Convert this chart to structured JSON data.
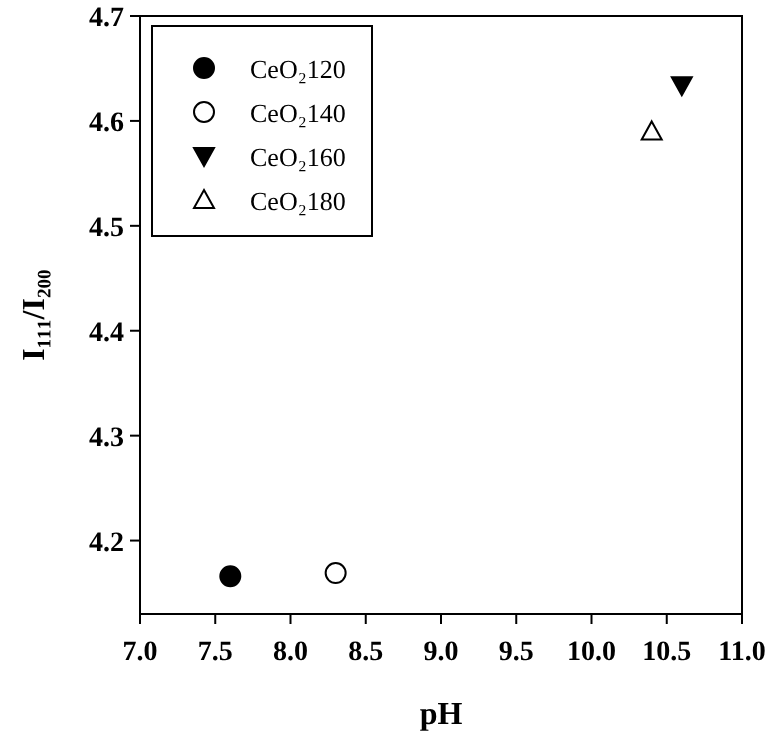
{
  "chart_data": {
    "type": "scatter",
    "xlabel": "pH",
    "ylabel": "I₁₁₁/I₂₀₀",
    "xlim": [
      7.0,
      11.0
    ],
    "xticks": [
      {
        "value": 7,
        "label": "7.0"
      },
      {
        "value": 7.5,
        "label": "7.5"
      },
      {
        "value": 8,
        "label": "8.0"
      },
      {
        "value": 8.5,
        "label": "8.5"
      },
      {
        "value": 9,
        "label": "9.0"
      },
      {
        "value": 9.5,
        "label": "9.5"
      },
      {
        "value": 10,
        "label": "10.0"
      },
      {
        "value": 10.5,
        "label": "10.5"
      },
      {
        "value": 11,
        "label": "11.0"
      }
    ],
    "ylim": [
      4.13,
      4.7
    ],
    "yticks": [
      4.2,
      4.3,
      4.4,
      4.5,
      4.6,
      4.7
    ],
    "legend": "top left",
    "grid": false,
    "series": [
      {
        "name": "CeO₂120",
        "color": "#000000",
        "marker": "circle",
        "x": [
          7.6
        ],
        "values": [
          4.166
        ]
      },
      {
        "name": "CeO₂140",
        "color": "#ffffff",
        "marker": "circle",
        "x": [
          8.3
        ],
        "values": [
          4.169
        ]
      },
      {
        "name": "CeO₂160",
        "color": "#000000",
        "marker": "triangle-down",
        "x": [
          10.6
        ],
        "values": [
          4.634
        ]
      },
      {
        "name": "CeO₂180",
        "color": "#ffffff",
        "marker": "triangle",
        "x": [
          10.4
        ],
        "values": [
          4.59
        ]
      }
    ]
  }
}
